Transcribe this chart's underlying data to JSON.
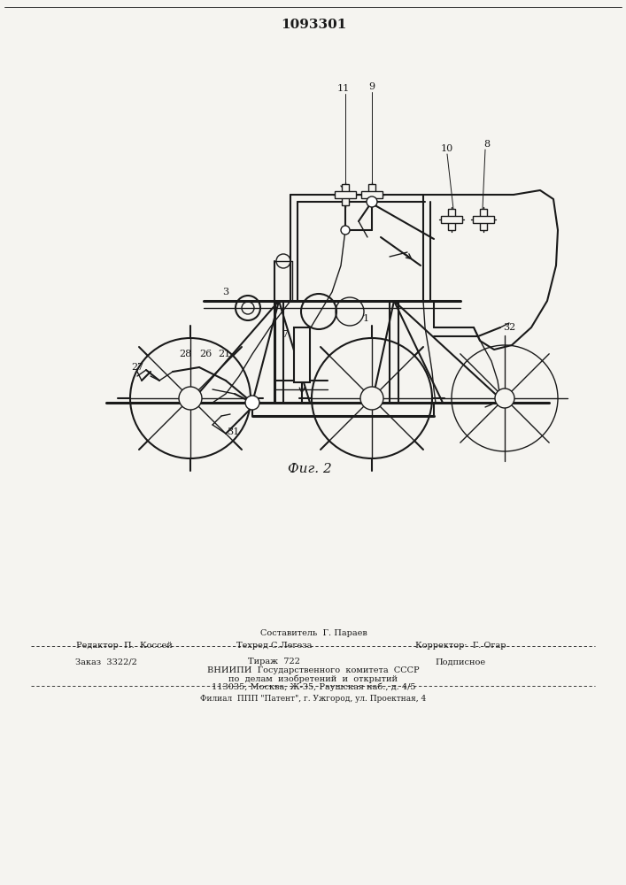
{
  "patent_number": "1093301",
  "fig_label": "Фиг. 2",
  "bg_color": "#f5f4f0",
  "line_color": "#1a1a1a",
  "footer": {
    "composer": "Составитель  Г. Параев",
    "editor": "Редактор  П.  Коссей",
    "techred": "Техред С.Легеза",
    "corrector": "Корректор·  Г. Огар",
    "order": "Заказ  3322/2",
    "tirazh": "Тираж  722",
    "podpisnoe": "Подписное",
    "vniip1": "ВНИИПИ  Государственного  комитета  СССР",
    "vniip2": "по  делам  изобретений  и  открытий",
    "vniip3": "113035, Москва, Ж-35, Раушская наб., д. 4/5",
    "filial": "Филиал  ППП \"Патент\", г. Ужгород, ул. Проектная, 4"
  }
}
